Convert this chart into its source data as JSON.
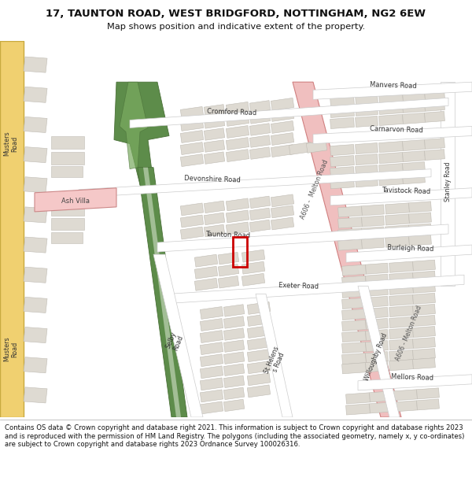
{
  "title": "17, TAUNTON ROAD, WEST BRIDGFORD, NOTTINGHAM, NG2 6EW",
  "subtitle": "Map shows position and indicative extent of the property.",
  "footer": "Contains OS data © Crown copyright and database right 2021. This information is subject to Crown copyright and database rights 2023 and is reproduced with the permission of HM Land Registry. The polygons (including the associated geometry, namely x, y co-ordinates) are subject to Crown copyright and database rights 2023 Ordnance Survey 100026316.",
  "map_bg": "#f0ede6",
  "road_color": "#ffffff",
  "road_edge_color": "#cccccc",
  "building_color": "#dedad2",
  "building_edge_color": "#c0bcb4",
  "green_color": "#5d8c4a",
  "green_edge": "#4a7038",
  "green_light": "#7aaa60",
  "pink_road_color": "#f0bfbf",
  "pink_road_edge": "#d08080",
  "yellow_road_color": "#f0d070",
  "yellow_road_edge": "#c8aa40",
  "red_rect_color": "#cc0000",
  "header_bg": "#ffffff",
  "footer_bg": "#ffffff"
}
